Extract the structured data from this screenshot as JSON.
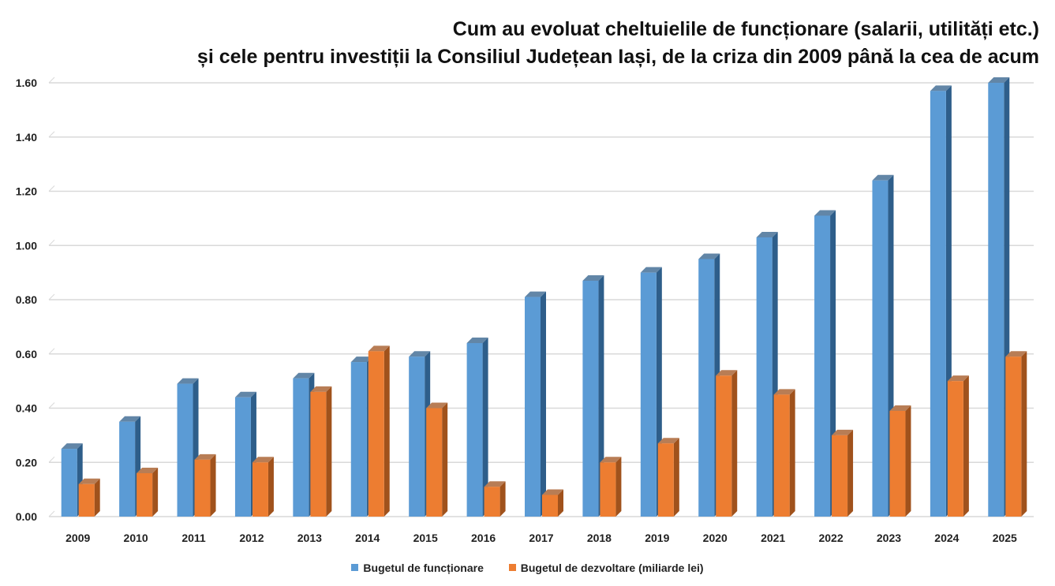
{
  "chart_data": {
    "type": "bar",
    "title_lines": [
      "Cum au evoluat cheltuielile de funcționare (salarii, utilități etc.)",
      "și cele pentru investiții la Consiliul Județean Iași, de la criza din 2009 până la cea de acum"
    ],
    "categories": [
      "2009",
      "2010",
      "2011",
      "2012",
      "2013",
      "2014",
      "2015",
      "2016",
      "2017",
      "2018",
      "2019",
      "2020",
      "2021",
      "2022",
      "2023",
      "2024",
      "2025"
    ],
    "series": [
      {
        "name": "Bugetul de funcționare",
        "color": "#5B9BD5",
        "side_color": "#2E5E8A",
        "values": [
          0.25,
          0.35,
          0.49,
          0.44,
          0.51,
          0.57,
          0.59,
          0.64,
          0.81,
          0.87,
          0.9,
          0.95,
          1.03,
          1.11,
          1.24,
          1.57,
          1.6
        ]
      },
      {
        "name": "Bugetul de dezvoltare (miliarde lei)",
        "color": "#ED7D31",
        "side_color": "#A0521C",
        "values": [
          0.12,
          0.16,
          0.21,
          0.2,
          0.46,
          0.61,
          0.4,
          0.11,
          0.08,
          0.2,
          0.27,
          0.52,
          0.45,
          0.3,
          0.39,
          0.5,
          0.59
        ]
      }
    ],
    "yticks": [
      "0.00",
      "0.20",
      "0.40",
      "0.60",
      "0.80",
      "1.00",
      "1.20",
      "1.40",
      "1.60"
    ],
    "ylim": [
      0,
      1.6
    ],
    "grid": true,
    "legend": "bottom",
    "xlabel": "",
    "ylabel": ""
  }
}
